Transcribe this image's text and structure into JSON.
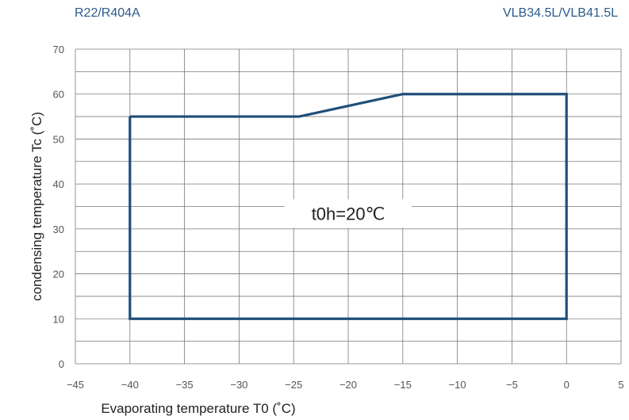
{
  "header": {
    "refrigerant": "R22/R404A",
    "model": "VLB34.5L/VLB41.5L"
  },
  "chart_data": {
    "type": "line",
    "title": "",
    "xlabel": "Evaporating temperature T0 (˚C)",
    "ylabel": "condensing temperature Tc (˚C)",
    "xlim": [
      -45,
      5
    ],
    "ylim": [
      0,
      70
    ],
    "x_ticks": [
      -45,
      -40,
      -35,
      -30,
      -25,
      -20,
      -15,
      -10,
      -5,
      0,
      5
    ],
    "y_ticks": [
      0,
      10,
      20,
      30,
      40,
      50,
      60,
      70
    ],
    "grid": true,
    "annotation": "t0h=20℃",
    "series": [
      {
        "color": "#1f4e79",
        "x": [
          -40,
          -24.5,
          -15,
          0,
          0,
          -40,
          -40
        ],
        "y": [
          55,
          55,
          60,
          60,
          10,
          10,
          55
        ]
      }
    ]
  }
}
